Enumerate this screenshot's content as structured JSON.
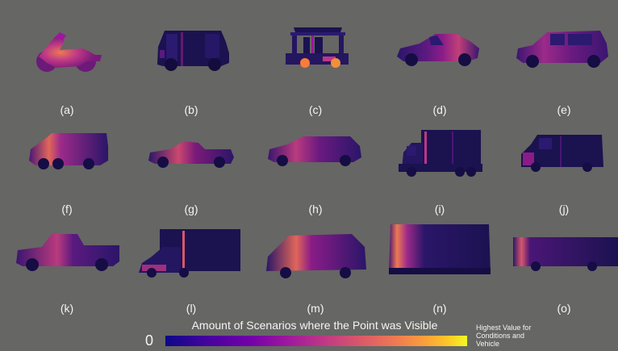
{
  "figure": {
    "panels": [
      {
        "label": "(a)",
        "vehicle": "motorcycle"
      },
      {
        "label": "(b)",
        "vehicle": "compact-van"
      },
      {
        "label": "(c)",
        "vehicle": "auto-rickshaw"
      },
      {
        "label": "(d)",
        "vehicle": "hatchback"
      },
      {
        "label": "(e)",
        "vehicle": "suv"
      },
      {
        "label": "(f)",
        "vehicle": "minivan"
      },
      {
        "label": "(g)",
        "vehicle": "convertible"
      },
      {
        "label": "(h)",
        "vehicle": "station-wagon"
      },
      {
        "label": "(i)",
        "vehicle": "box-truck"
      },
      {
        "label": "(j)",
        "vehicle": "van"
      },
      {
        "label": "(k)",
        "vehicle": "pickup-truck"
      },
      {
        "label": "(l)",
        "vehicle": "tow-truck"
      },
      {
        "label": "(m)",
        "vehicle": "delivery-van"
      },
      {
        "label": "(n)",
        "vehicle": "bus-front"
      },
      {
        "label": "(o)",
        "vehicle": "bus"
      }
    ]
  },
  "legend": {
    "title": "Amount of Scenarios where the Point was Visible",
    "min_label": "0",
    "max_label_lines": [
      "Highest Value for",
      "Conditions and",
      "Vehicle"
    ],
    "colormap": "plasma",
    "colors": [
      "#0d0887",
      "#46039f",
      "#7201a8",
      "#9c179e",
      "#bd3786",
      "#d8576b",
      "#ed7953",
      "#fb9f3a",
      "#fdca26",
      "#f0f921"
    ]
  },
  "colors": {
    "background": "#666664",
    "vehicle_base": "#1b1250",
    "vehicle_edge": "#221866"
  }
}
